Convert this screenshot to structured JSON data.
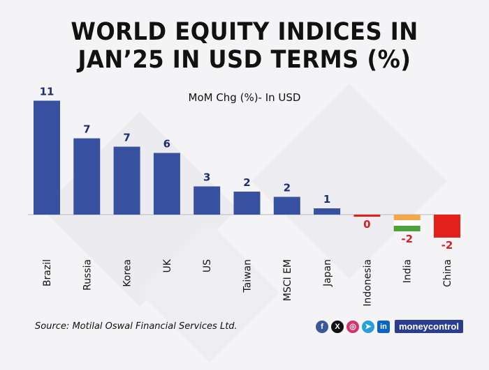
{
  "title_line1": "WORLD EQUITY INDICES IN",
  "title_line2": "JAN’25 IN USD TERMS (%)",
  "subtitle": "MoM Chg (%)- In USD",
  "source": "Source: Motilal Oswal Financial Services Ltd.",
  "brand": "moneycontrol",
  "social_icons": [
    "facebook-icon",
    "x-icon",
    "instagram-icon",
    "telegram-icon",
    "linkedin-icon"
  ],
  "colors": {
    "bar_positive": "#3751a0",
    "bar_china": "#e3201b",
    "label_positive": "#1f2d6e",
    "label_negative": "#d42020",
    "india_saffron": "#f4a64a",
    "india_white": "#ffffff",
    "india_green": "#4ea13d"
  },
  "chart_data": {
    "type": "bar",
    "categories": [
      "Brazil",
      "Russia",
      "Korea",
      "UK",
      "US",
      "Taiwan",
      "MSCI EM",
      "Japan",
      "Indonesia",
      "India",
      "China"
    ],
    "values": [
      10.9,
      7.3,
      6.5,
      5.9,
      2.7,
      2.2,
      1.7,
      0.6,
      -0.2,
      -1.6,
      -2.2
    ],
    "labels": [
      "11",
      "7",
      "7",
      "6",
      "3",
      "2",
      "2",
      "1",
      "0",
      "-2",
      "-2"
    ],
    "ylim": [
      -3,
      12
    ],
    "grid": false
  }
}
